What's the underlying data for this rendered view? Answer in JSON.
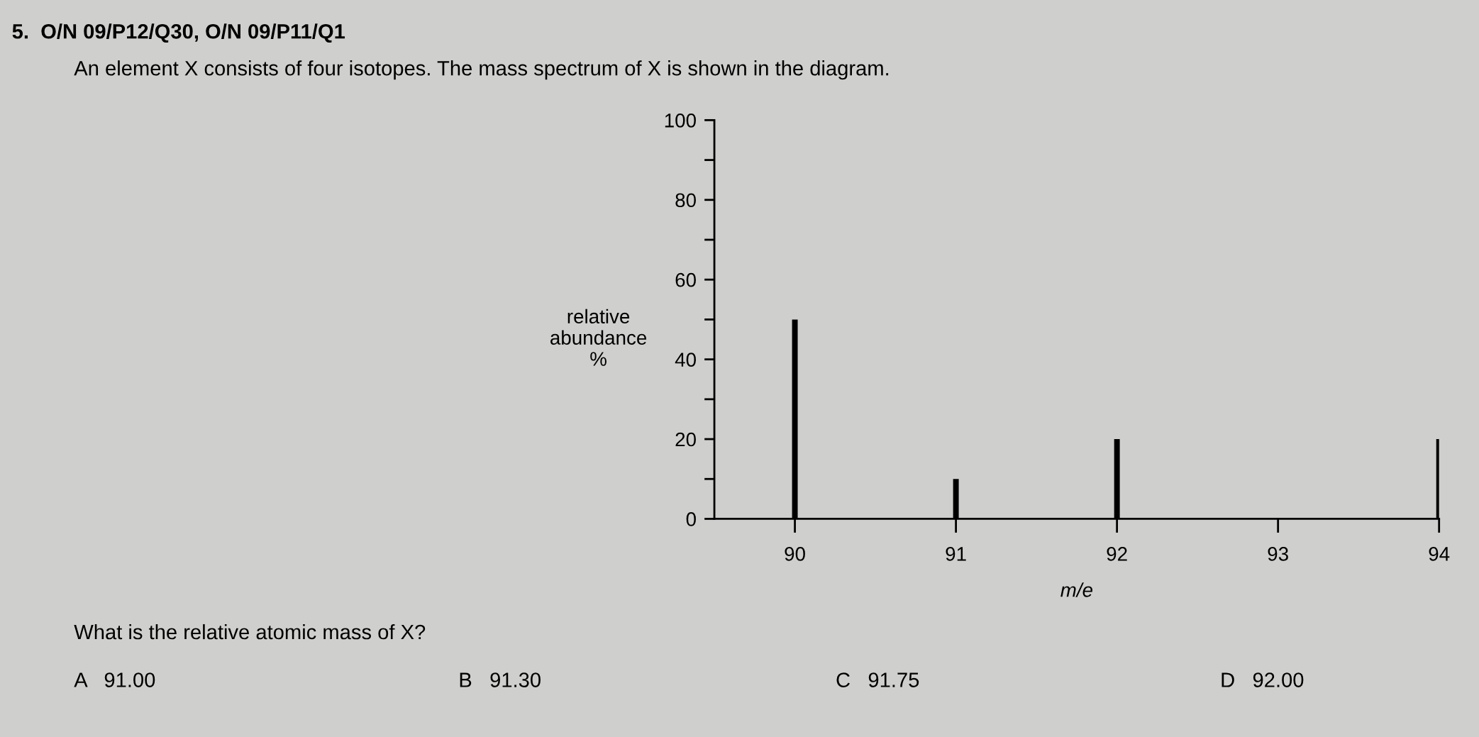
{
  "chart_data": {
    "type": "bar",
    "title": "5.  O/N 09/P12/Q30, O/N 09/P11/Q1",
    "subtitle": "An element X consists of four isotopes. The mass spectrum of X is shown in the diagram.",
    "xlabel": "m/e",
    "ylabel": "relative\nabundance\n%",
    "x": [
      90,
      91,
      92,
      94
    ],
    "values": [
      50,
      10,
      20,
      20
    ],
    "color": "#000000",
    "xlim": [
      89.5,
      94
    ],
    "xticks": [
      90,
      91,
      92,
      93,
      94
    ],
    "ylim": [
      0,
      100
    ],
    "yticks": [
      0,
      {
        "value": 10,
        "label": null
      },
      20,
      {
        "value": 30,
        "label": null
      },
      40,
      {
        "value": 50,
        "label": null
      },
      60,
      {
        "value": 70,
        "label": null
      },
      80,
      {
        "value": 90,
        "label": null
      },
      100
    ],
    "grid": false,
    "legend": false,
    "annotations": [
      "What is the relative atomic mass of X?",
      "A   91.00",
      "B   91.30",
      "C   91.75",
      "D   92.00"
    ]
  }
}
